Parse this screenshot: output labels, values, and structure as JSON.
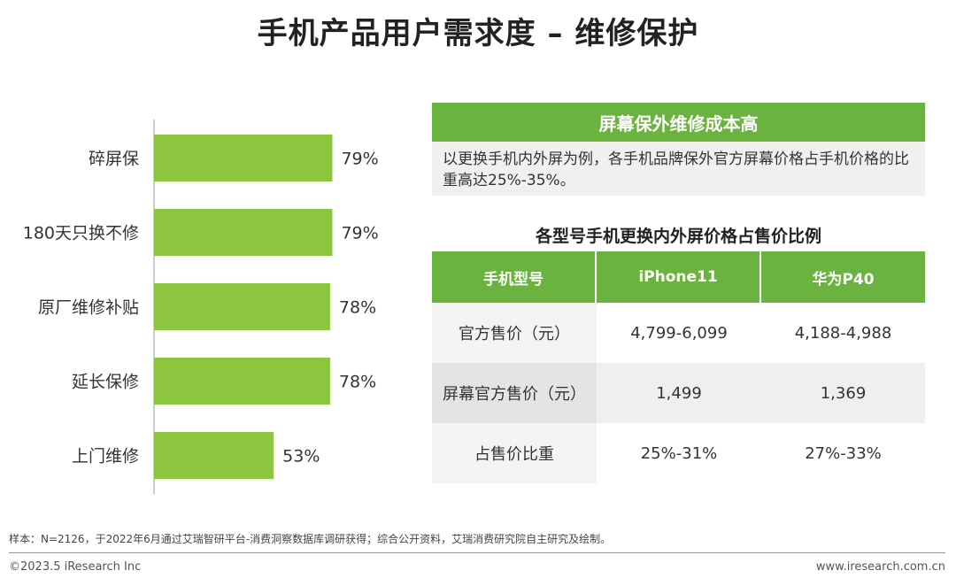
{
  "title": "手机产品用户需求度 – 维修保护",
  "chart_data": {
    "type": "bar",
    "orientation": "horizontal",
    "categories": [
      "碎屏保",
      "180天只换不修",
      "原厂维修补贴",
      "延长保修",
      "上门维修"
    ],
    "values": [
      79,
      79,
      78,
      78,
      53
    ],
    "value_labels": [
      "79%",
      "79%",
      "78%",
      "78%",
      "53%"
    ],
    "xlim": [
      0,
      100
    ],
    "bar_color": "#8cc63f",
    "grid": false
  },
  "panel": {
    "banner": "屏幕保外维修成本高",
    "description": "以更换手机内外屏为例，各手机品牌保外官方屏幕价格占手机价格的比重高达25%-35%。",
    "table_title": "各型号手机更换内外屏价格占售价比例",
    "header_color": "#6ab33e",
    "table": {
      "headers": [
        "手机型号",
        "iPhone11",
        "华为P40"
      ],
      "rows": [
        [
          "官方售价（元）",
          "4,799-6,099",
          "4,188-4,988"
        ],
        [
          "屏幕官方售价（元）",
          "1,499",
          "1,369"
        ],
        [
          "占售价比重",
          "25%-31%",
          "27%-33%"
        ]
      ]
    }
  },
  "footer": {
    "note": "样本：N=2126，于2022年6月通过艾瑞智研平台-消费洞察数据库调研获得；综合公开资料，艾瑞消费研究院自主研究及绘制。",
    "copyright": "©2023.5 iResearch Inc",
    "website": "www.iresearch.com.cn"
  }
}
